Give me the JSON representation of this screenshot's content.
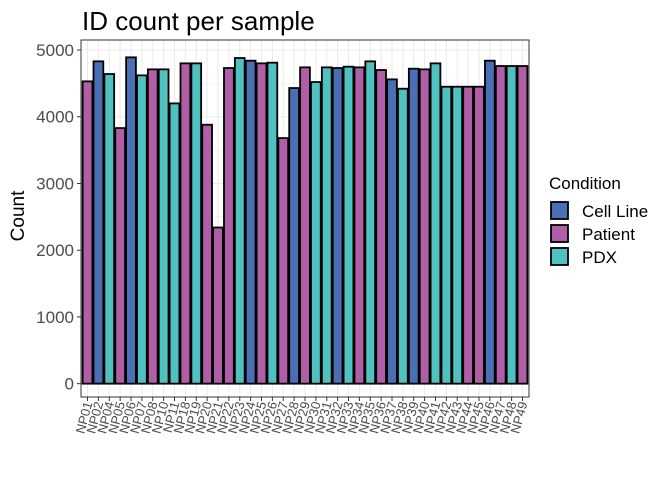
{
  "chart_data": {
    "type": "bar",
    "title": "ID count per sample",
    "xlabel": "",
    "ylabel": "Count",
    "ylim": [
      -200,
      5150
    ],
    "yticks": [
      0,
      1000,
      2000,
      3000,
      4000,
      5000
    ],
    "grid": true,
    "legend_position": "right",
    "legend": {
      "title": "Condition",
      "entries": [
        {
          "name": "Cell Line",
          "color": "#4a6fb5"
        },
        {
          "name": "Patient",
          "color": "#b05fa6"
        },
        {
          "name": "PDX",
          "color": "#4fc1c0"
        }
      ]
    },
    "categories": [
      "NP01",
      "NP02",
      "NP04",
      "NP05",
      "NP06",
      "NP07",
      "NP08",
      "NP10",
      "NP11",
      "NP18",
      "NP19",
      "NP20",
      "NP21",
      "NP22",
      "NP23",
      "NP24",
      "NP25",
      "NP26",
      "NP27",
      "NP28",
      "NP29",
      "NP30",
      "NP31",
      "NP32",
      "NP33",
      "NP34",
      "NP35",
      "NP36",
      "NP37",
      "NP38",
      "NP39",
      "NP40",
      "NP41",
      "NP42",
      "NP43",
      "NP44",
      "NP45",
      "NP46",
      "NP47",
      "NP48",
      "NP49"
    ],
    "conditions": [
      "Patient",
      "Cell Line",
      "PDX",
      "Patient",
      "Cell Line",
      "PDX",
      "Patient",
      "PDX",
      "PDX",
      "Patient",
      "PDX",
      "Patient",
      "Patient",
      "Patient",
      "PDX",
      "Cell Line",
      "Patient",
      "PDX",
      "Patient",
      "Cell Line",
      "Patient",
      "PDX",
      "PDX",
      "Cell Line",
      "PDX",
      "Patient",
      "PDX",
      "Patient",
      "Cell Line",
      "PDX",
      "Cell Line",
      "Patient",
      "PDX",
      "PDX",
      "PDX",
      "Patient",
      "Patient",
      "Cell Line",
      "Patient",
      "PDX",
      "Patient"
    ],
    "values": [
      4530,
      4830,
      4640,
      3830,
      4890,
      4620,
      4710,
      4710,
      4200,
      4800,
      4800,
      3880,
      2340,
      4730,
      4880,
      4840,
      4800,
      4810,
      3680,
      4430,
      4740,
      4520,
      4740,
      4730,
      4750,
      4740,
      4830,
      4700,
      4560,
      4420,
      4720,
      4710,
      4800,
      4450,
      4450,
      4450,
      4450,
      4840,
      4760,
      4760,
      4760
    ]
  }
}
